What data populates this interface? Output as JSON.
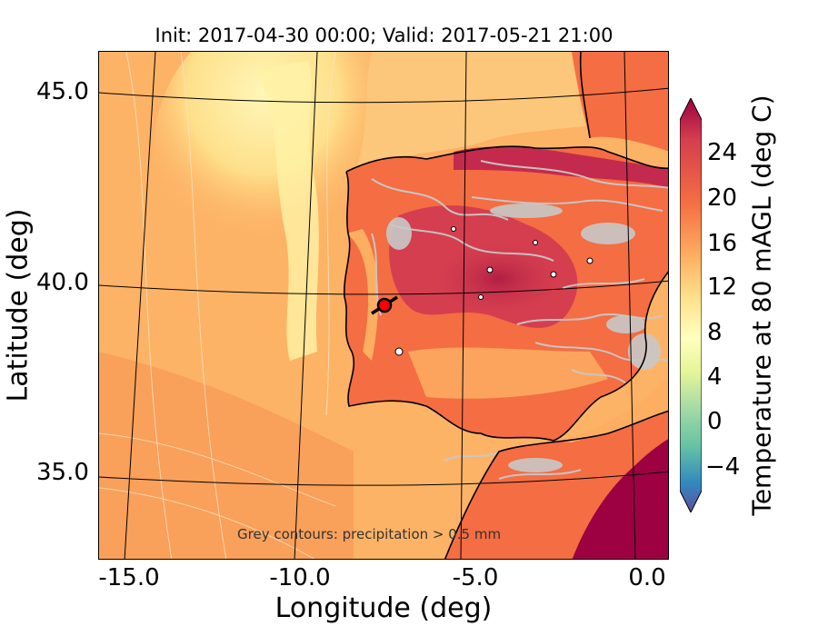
{
  "title": "Init: 2017-04-30 00:00; Valid: 2017-05-21 21:00",
  "axes": {
    "xlabel": "Longitude (deg)",
    "ylabel": "Latitude (deg)",
    "xticks": [
      "-15.0",
      "-10.0",
      "-5.0",
      "0.0"
    ],
    "yticks": [
      "45.0",
      "40.0",
      "35.0"
    ]
  },
  "colorbar": {
    "label": "Temperature at 80 mAGL (deg C)",
    "ticks": [
      "24",
      "20",
      "16",
      "12",
      "8",
      "4",
      "0",
      "−4"
    ],
    "range": [
      -7,
      27
    ],
    "colors": {
      "low": "#5e4fa2",
      "cool": "#3288bd",
      "teal": "#66c2a5",
      "green": "#abdda4",
      "pale": "#e6f598",
      "cream": "#ffffbf",
      "yellow": "#fee08b",
      "orange": "#fdae61",
      "dark_orange": "#f46d43",
      "red": "#d53e4f",
      "crimson": "#9e0142"
    }
  },
  "annotation": "Grey contours: precipitation > 0.5 mm",
  "marker": {
    "lon": -7.6,
    "lat": 39.35,
    "color": "#ff0000"
  },
  "colors": {
    "ocean": "#fdb366",
    "coast": "#000000",
    "grid": "#000000",
    "precip": "#c8c8c8"
  }
}
